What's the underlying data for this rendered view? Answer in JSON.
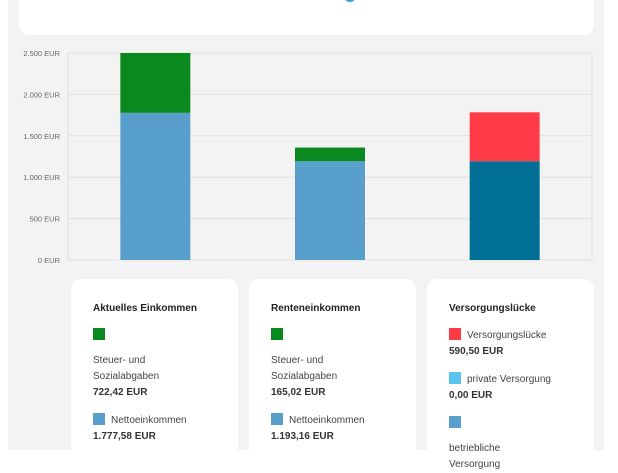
{
  "colors": {
    "steuer": "#0a8a1e",
    "netto": "#58a0cb",
    "luecke": "#ff3b47",
    "privat": "#58c4ef",
    "betrieblich": "#006f96",
    "grid": "#e0e0e0",
    "chart_bg": "#f3f3f3"
  },
  "chart_data": {
    "type": "bar",
    "stacked": true,
    "categories": [
      "Aktuelles Einkommen",
      "Renteneinkommen",
      "Versorgungslücke"
    ],
    "series": [
      {
        "name": "Nettoeinkommen",
        "values": [
          1777.58,
          1193.16,
          0
        ],
        "color": "#58a0cb"
      },
      {
        "name": "betriebliche Versorgung",
        "values": [
          0,
          0,
          1193.16
        ],
        "color": "#006f96"
      },
      {
        "name": "private Versorgung",
        "values": [
          0,
          0,
          0
        ],
        "color": "#58c4ef"
      },
      {
        "name": "Steuer- und Sozialabgaben",
        "values": [
          722.42,
          165.02,
          0
        ],
        "color": "#0a8a1e"
      },
      {
        "name": "Versorgungslücke",
        "values": [
          0,
          0,
          590.5
        ],
        "color": "#ff3b47"
      }
    ],
    "yticks": [
      0,
      500,
      1000,
      1500,
      2000,
      2500
    ],
    "ytick_labels": [
      "0 EUR",
      "500 EUR",
      "1.000 EUR",
      "1.500 EUR",
      "2.000 EUR",
      "2.500 EUR"
    ],
    "ylim": [
      0,
      2500
    ],
    "grid": true
  },
  "cards": [
    {
      "title": "Aktuelles Einkommen",
      "items": [
        {
          "label": "Steuer- und Sozialabgaben",
          "amount": "722,42 EUR",
          "color": "#0a8a1e",
          "layout": "stack"
        },
        {
          "label": "Nettoeinkommen",
          "amount": "1.777,58 EUR",
          "color": "#58a0cb",
          "layout": "inline"
        }
      ]
    },
    {
      "title": "Renteneinkommen",
      "items": [
        {
          "label": "Steuer- und Sozialabgaben",
          "amount": "165,02 EUR",
          "color": "#0a8a1e",
          "layout": "stack"
        },
        {
          "label": "Nettoeinkommen",
          "amount": "1.193,16 EUR",
          "color": "#58a0cb",
          "layout": "inline"
        }
      ]
    },
    {
      "title": "Versorgungslücke",
      "items": [
        {
          "label": "Versorgungslücke",
          "amount": "590,50 EUR",
          "color": "#ff3b47",
          "layout": "inline"
        },
        {
          "label": "private Versorgung",
          "amount": "0,00 EUR",
          "color": "#58c4ef",
          "layout": "inline"
        },
        {
          "label": "betriebliche Versorgung",
          "amount": "",
          "color": "#58a0cb",
          "layout": "stack"
        }
      ]
    }
  ]
}
